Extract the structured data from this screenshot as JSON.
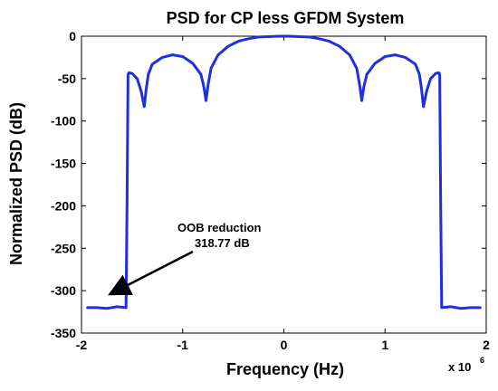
{
  "chart_data": {
    "type": "line",
    "title": "PSD for CP less GFDM System",
    "xlabel": "Frequency (Hz)",
    "ylabel": "Normalized PSD (dB)",
    "x_exponent_prefix": "x 10",
    "x_exponent_power": "6",
    "xlim": [
      -2,
      2
    ],
    "ylim": [
      -350,
      0
    ],
    "xticks": [
      -2,
      -1,
      0,
      1,
      2
    ],
    "xtick_labels": [
      "-2",
      "-1",
      "0",
      "1",
      "2"
    ],
    "yticks": [
      0,
      -50,
      -100,
      -150,
      -200,
      -250,
      -300,
      -350
    ],
    "ytick_labels": [
      "0",
      "-50",
      "-100",
      "-150",
      "-200",
      "-250",
      "-300",
      "-350"
    ],
    "grid": false,
    "line_color": "#1f2fe0",
    "series": [
      {
        "x": [
          -1.94,
          -1.85,
          -1.75,
          -1.65,
          -1.56,
          -1.55,
          -1.54,
          -1.53,
          -1.5,
          -1.45,
          -1.41,
          -1.38,
          -1.36,
          -1.34,
          -1.3,
          -1.2,
          -1.1,
          -1.0,
          -0.9,
          -0.82,
          -0.79,
          -0.77,
          -0.75,
          -0.72,
          -0.65,
          -0.55,
          -0.45,
          -0.35,
          -0.25,
          -0.15,
          -0.05,
          0.0,
          0.05,
          0.15,
          0.25,
          0.35,
          0.45,
          0.55,
          0.65,
          0.72,
          0.75,
          0.77,
          0.79,
          0.82,
          0.9,
          1.0,
          1.1,
          1.2,
          1.3,
          1.34,
          1.36,
          1.38,
          1.41,
          1.45,
          1.5,
          1.53,
          1.54,
          1.55,
          1.56,
          1.65,
          1.75,
          1.85,
          1.94
        ],
        "y": [
          -320,
          -320,
          -321,
          -319,
          -320,
          -200,
          -45,
          -43,
          -44,
          -50,
          -65,
          -83,
          -62,
          -45,
          -33,
          -25,
          -22,
          -24,
          -32,
          -45,
          -60,
          -76,
          -58,
          -38,
          -22,
          -12,
          -6,
          -3,
          -1,
          -0.5,
          0,
          0,
          0,
          -0.5,
          -1,
          -3,
          -6,
          -12,
          -22,
          -38,
          -58,
          -76,
          -60,
          -45,
          -32,
          -24,
          -22,
          -25,
          -33,
          -45,
          -62,
          -83,
          -65,
          -50,
          -44,
          -43,
          -45,
          -200,
          -320,
          -319,
          -321,
          -320,
          -320
        ]
      }
    ],
    "annotations": [
      {
        "text_lines": [
          "OOB reduction",
          "318.77 dB"
        ],
        "arrow_to": {
          "x": -1.7,
          "y": -303
        }
      }
    ]
  }
}
